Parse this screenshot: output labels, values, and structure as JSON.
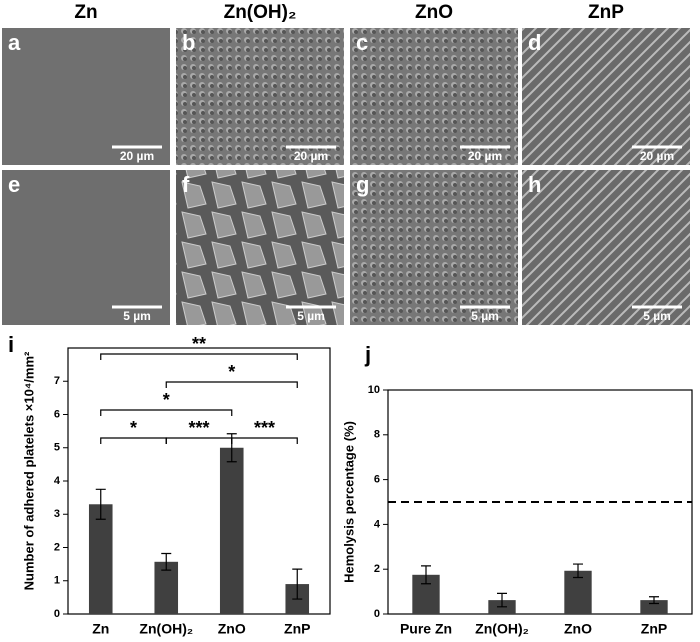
{
  "columns": [
    "Zn",
    "Zn(OH)₂",
    "ZnO",
    "ZnP"
  ],
  "panels": [
    {
      "letter": "a",
      "scale": "20 µm"
    },
    {
      "letter": "b",
      "scale": "20 µm"
    },
    {
      "letter": "c",
      "scale": "20 µm"
    },
    {
      "letter": "d",
      "scale": "20 µm"
    },
    {
      "letter": "e",
      "scale": "5 µm"
    },
    {
      "letter": "f",
      "scale": "5 µm"
    },
    {
      "letter": "g",
      "scale": "5 µm"
    },
    {
      "letter": "h",
      "scale": "5 µm"
    }
  ],
  "chart_data": [
    {
      "type": "bar",
      "label": "i",
      "y_label": "Number of adhered platelets ×10⁴/mm²",
      "categories": [
        "Zn",
        "Zn(OH)₂",
        "ZnO",
        "ZnP"
      ],
      "values": [
        3.3,
        1.57,
        5.0,
        0.9
      ],
      "errors": [
        0.45,
        0.25,
        0.42,
        0.45
      ],
      "color": "#404040",
      "ylim": [
        0,
        8
      ],
      "yticks": [
        0,
        1,
        2,
        3,
        4,
        5,
        6,
        7
      ],
      "annotations": [
        {
          "text": "**",
          "between": [
            "Zn",
            "ZnP"
          ]
        },
        {
          "text": "*",
          "between": [
            "Zn(OH)₂",
            "ZnP"
          ]
        },
        {
          "text": "*",
          "between": [
            "Zn",
            "ZnO"
          ]
        },
        {
          "text": "*",
          "between": [
            "Zn",
            "Zn(OH)₂"
          ]
        },
        {
          "text": "***",
          "between": [
            "Zn(OH)₂",
            "ZnO"
          ]
        },
        {
          "text": "***",
          "between": [
            "ZnO",
            "ZnP"
          ]
        }
      ]
    },
    {
      "type": "bar",
      "label": "j",
      "y_label": "Hemolysis percentage (%)",
      "categories": [
        "Pure Zn",
        "Zn(OH)₂",
        "ZnO",
        "ZnP"
      ],
      "values": [
        1.75,
        0.62,
        1.93,
        0.62
      ],
      "errors": [
        0.4,
        0.3,
        0.3,
        0.15
      ],
      "color": "#404040",
      "ylim": [
        0,
        10
      ],
      "yticks": [
        0,
        2,
        4,
        6,
        8,
        10
      ],
      "reference_line": 5
    }
  ]
}
